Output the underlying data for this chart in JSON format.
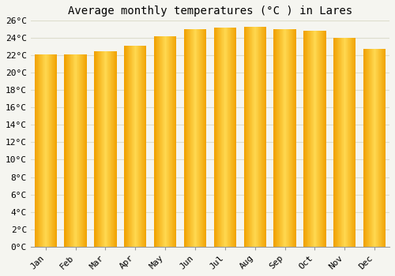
{
  "title": "Average monthly temperatures (°C ) in Lares",
  "months": [
    "Jan",
    "Feb",
    "Mar",
    "Apr",
    "May",
    "Jun",
    "Jul",
    "Aug",
    "Sep",
    "Oct",
    "Nov",
    "Dec"
  ],
  "values": [
    22.1,
    22.1,
    22.5,
    23.1,
    24.2,
    25.0,
    25.2,
    25.3,
    25.0,
    24.8,
    24.0,
    22.8
  ],
  "bar_color_center": "#FFD050",
  "bar_color_edge": "#F0A000",
  "background_color": "#F5F5F0",
  "plot_bg_color": "#F5F5F0",
  "grid_color": "#DDDDCC",
  "ylim": [
    0,
    26
  ],
  "yticks": [
    0,
    2,
    4,
    6,
    8,
    10,
    12,
    14,
    16,
    18,
    20,
    22,
    24,
    26
  ],
  "title_fontsize": 10,
  "tick_fontsize": 8,
  "tick_font_family": "monospace"
}
